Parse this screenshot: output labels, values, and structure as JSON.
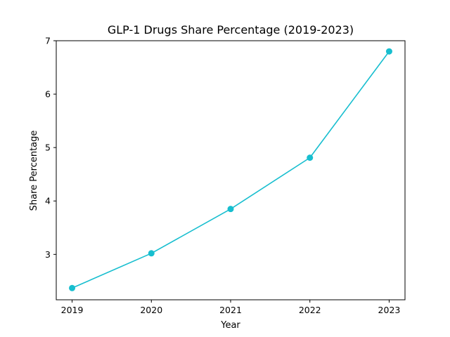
{
  "chart_data": {
    "type": "line",
    "title": "GLP-1 Drugs Share Percentage (2019-2023)",
    "xlabel": "Year",
    "ylabel": "Share Percentage",
    "x": [
      2019,
      2020,
      2021,
      2022,
      2023
    ],
    "x_tick_labels": [
      "2019",
      "2020",
      "2021",
      "2022",
      "2023"
    ],
    "y_ticks": [
      3,
      4,
      5,
      6,
      7
    ],
    "y_tick_labels": [
      "3",
      "4",
      "5",
      "6",
      "7"
    ],
    "ylim": [
      2.15,
      7.0
    ],
    "xlim": [
      2018.8,
      2023.2
    ],
    "grid": false,
    "legend": "none",
    "series": [
      {
        "values": [
          2.37,
          3.02,
          3.85,
          4.81,
          6.8
        ],
        "color": "#17becf",
        "marker": "circle"
      }
    ]
  }
}
